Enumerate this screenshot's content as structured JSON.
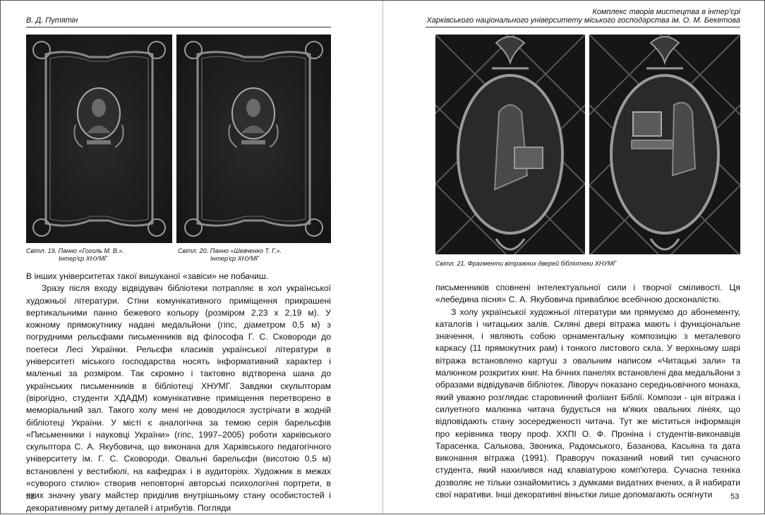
{
  "left_page": {
    "header": "В. Д. Путятін",
    "figure_19": {
      "caption_line1": "Світл. 19. Панно «Гоголь М. В.».",
      "caption_line2": "Інтер'єр ХНУМГ"
    },
    "figure_20": {
      "caption_line1": "Світл. 20. Панно «Шевченко Т. Г.».",
      "caption_line2": "Інтер'єр ХНУМГ"
    },
    "paragraphs": [
      "В інших університетах такої вишуканої «завіси» не побачиш.",
      "Зразу після входу відвідувач бібліотеки потрапляє в хол української художньої літератури. Стіни комунікативного приміщення прикрашені вертикальними панно бежевого кольору (розміром 2,23 х 2,19 м). У кожному прямокутнику надані медальйони (гіпс, діаметром 0,5 м) з погрудними рельєфами письменників від філософа Г. С. Сковороди до поетеси Лесі Українки. Рельєфи класиків української літератури в університеті міського господарства носять інформативний характер і маленькі за розміром. Так скромно і тактовно відтворена шана до українських письменників в бібліотеці ХНУМГ. Завдяки скульпторам (вірогідно, студенти ХДАДМ) комунікативне приміщення перетворено в меморіальний зал. Такого холу мені не доводилося зустрічати в жодній бібліотеці України. У місті є аналогічна за темою серія барельєфів «Письменники і науковці України» (гіпс, 1997–2005) роботи харківського скульптора С. А. Якубовича, що виконана для Харківського педагогічного університету ім. Г. С. Сковороди. Овальні барельєфи (висотою 0,5 м) встановлені у вестибюлі, на кафедрах і в аудиторіях. Художник в межах «суворого стилю» створив неповторні авторські психологічні портрети, в яких значну увагу майстер приділив внутрішньому стану особистостей і декоративному ритму деталей і атрибутів. Погляди"
    ],
    "page_number": "52"
  },
  "right_page": {
    "header_line1": "Комплекс творів мистецтва в інтер'єрі",
    "header_line2": "Харківського національного університету міського господарства ім. О. М. Бекетова",
    "figure_21": {
      "caption": "Світл. 21. Фрагменти вітражних дверей бібліотеки ХНУМГ"
    },
    "paragraphs": [
      "письменників сповнені інтелектуальної сили і творчої сміливості. Ця «лебедина пісня» С. А. Якубовича приваблює всебічною досконалістю.",
      "З холу української художньої літератури ми прямуємо до абонементу, каталогів і читацьких залів. Скляні двері вітража мають і функціональне значення, і являють собою орнаментальну композицію з металевого каркасу (11 прямокутних рам) і тонкого листового скла. У верхньому шарі вітража встановлено картуш з овальним написом «Читацькі зали» та малюнком розкритих книг. На бічних панелях встановлені два медальйони з образами відвідувачів бібліотек. Ліворуч показано середньовічного монаха, який уважно розглядає старовинний фоліант Біблії. Компози - ція вітража і силуетного малюнка читача будується на м'яких овальних лініях, що відповідають стану зосередженості читача. Тут же міститься інформація про керівника твору проф. ХХПІ О. Ф. Проніна і студентів-виконавців Тарасенка, Салькова, Звоника, Радомського, Базанова, Касьяна та дата виконання вітража (1991). Праворуч показаний новий тип сучасного студента, який нахилився над клавіатурою комп'ютера. Сучасна техніка дозволяє не тільки ознайомитись з думками видатних вчених, а й набирати свої наративи. Інші декоративні віньєтки лише допомагають осягнути"
    ],
    "page_number": "53"
  }
}
